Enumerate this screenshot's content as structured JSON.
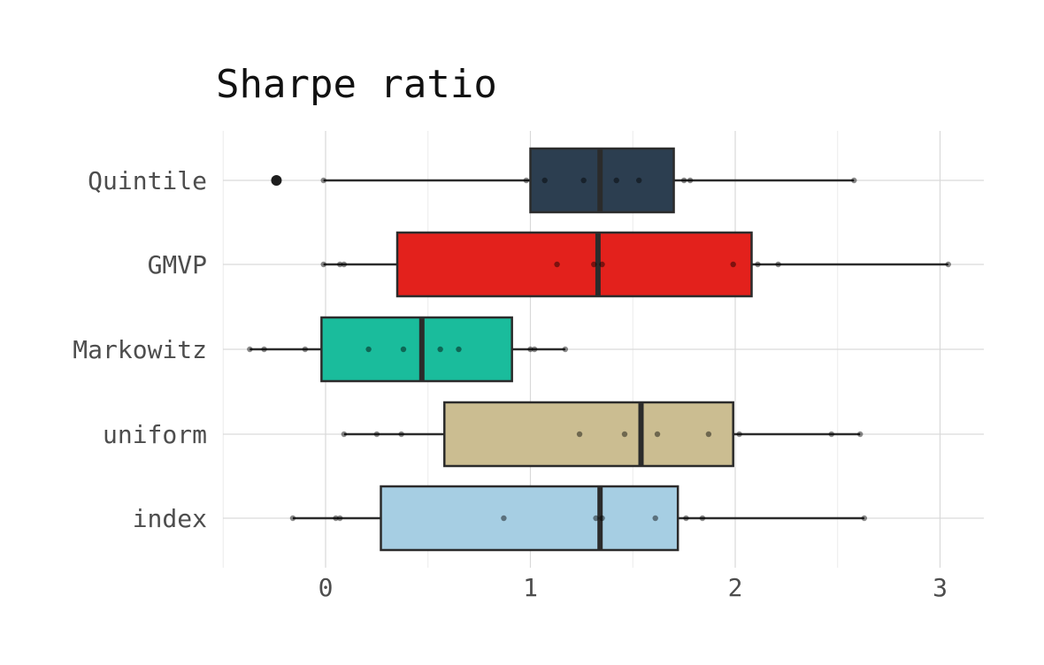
{
  "chart_data": {
    "type": "boxplot",
    "orientation": "horizontal",
    "title": "Sharpe ratio",
    "xlabel": "",
    "ylabel": "",
    "xlim": [
      -0.5,
      3.2
    ],
    "xticks": [
      0,
      1,
      2,
      3
    ],
    "xtick_labels": [
      "0",
      "1",
      "2",
      "3"
    ],
    "grid": true,
    "legend": "none",
    "categories": [
      "Quintile",
      "GMVP",
      "Markowitz",
      "uniform",
      "index"
    ],
    "series": [
      {
        "category": "Quintile",
        "color": "#2c3e50",
        "q1": 1.0,
        "median": 1.34,
        "q3": 1.7,
        "whisker_low": -0.01,
        "whisker_high": 2.58,
        "outliers": [
          -0.24
        ],
        "points": [
          -0.01,
          0.98,
          1.07,
          1.26,
          1.42,
          1.53,
          1.75,
          1.78,
          2.58
        ]
      },
      {
        "category": "GMVP",
        "color": "#e3211c",
        "q1": 0.35,
        "median": 1.33,
        "q3": 2.08,
        "whisker_low": -0.01,
        "whisker_high": 3.04,
        "outliers": [],
        "points": [
          -0.01,
          0.07,
          0.09,
          1.13,
          1.31,
          1.35,
          1.99,
          2.11,
          2.21,
          3.04
        ]
      },
      {
        "category": "Markowitz",
        "color": "#1abc9c",
        "q1": -0.02,
        "median": 0.47,
        "q3": 0.91,
        "whisker_low": -0.37,
        "whisker_high": 1.17,
        "outliers": [],
        "points": [
          -0.37,
          -0.3,
          -0.1,
          0.21,
          0.38,
          0.56,
          0.65,
          1.0,
          1.02,
          1.17
        ]
      },
      {
        "category": "uniform",
        "color": "#cbbd91",
        "q1": 0.58,
        "median": 1.54,
        "q3": 1.99,
        "whisker_low": 0.09,
        "whisker_high": 2.61,
        "outliers": [],
        "points": [
          0.09,
          0.25,
          0.37,
          1.24,
          1.46,
          1.62,
          1.87,
          2.02,
          2.47,
          2.61
        ]
      },
      {
        "category": "index",
        "color": "#a6cee3",
        "q1": 0.27,
        "median": 1.34,
        "q3": 1.72,
        "whisker_low": -0.16,
        "whisker_high": 2.63,
        "outliers": [],
        "points": [
          -0.16,
          0.05,
          0.07,
          0.87,
          1.32,
          1.35,
          1.61,
          1.76,
          1.84,
          2.63
        ]
      }
    ]
  }
}
